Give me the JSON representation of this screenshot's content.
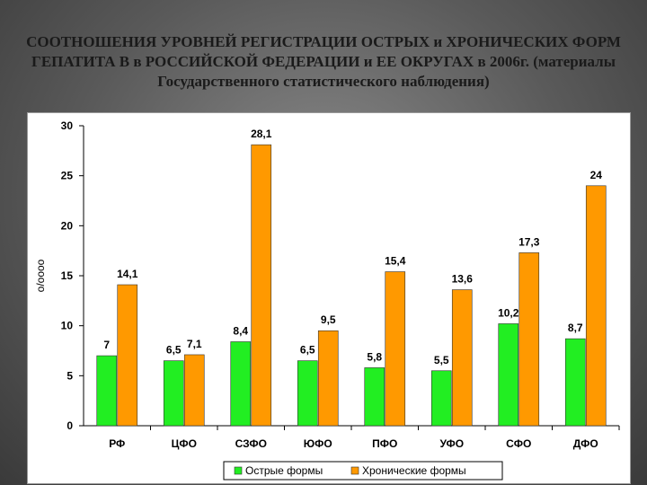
{
  "title": "СООТНОШЕНИЯ УРОВНЕЙ РЕГИСТРАЦИИ ОСТРЫХ и ХРОНИЧЕСКИХ ФОРМ ГЕПАТИТА В в РОССИЙСКОЙ ФЕДЕРАЦИИ и ЕЕ ОКРУГАХ в 2006г. (материалы Государственного статистического наблюдения)",
  "chart_data": {
    "type": "bar",
    "ylabel": "о/оооо",
    "ylim": [
      0,
      30
    ],
    "yticks": [
      0,
      5,
      10,
      15,
      20,
      25,
      30
    ],
    "grid": false,
    "legend_position": "bottom",
    "categories": [
      "РФ",
      "ЦФО",
      "СЗФО",
      "ЮФО",
      "ПФО",
      "УФО",
      "СФО",
      "ДФО"
    ],
    "series": [
      {
        "name": "Острые формы",
        "color": "#22ee22",
        "values": [
          7,
          6.5,
          8.4,
          6.5,
          5.8,
          5.5,
          10.2,
          8.7
        ],
        "labels": [
          "7",
          "6,5",
          "8,4",
          "6,5",
          "5,8",
          "5,5",
          "10,2",
          "8,7"
        ]
      },
      {
        "name": "Хронические формы",
        "color": "#ff9900",
        "values": [
          14.1,
          7.1,
          28.1,
          9.5,
          15.4,
          13.6,
          17.3,
          24
        ],
        "labels": [
          "14,1",
          "7,1",
          "28,1",
          "9,5",
          "15,4",
          "13,6",
          "17,3",
          "24"
        ]
      }
    ]
  }
}
